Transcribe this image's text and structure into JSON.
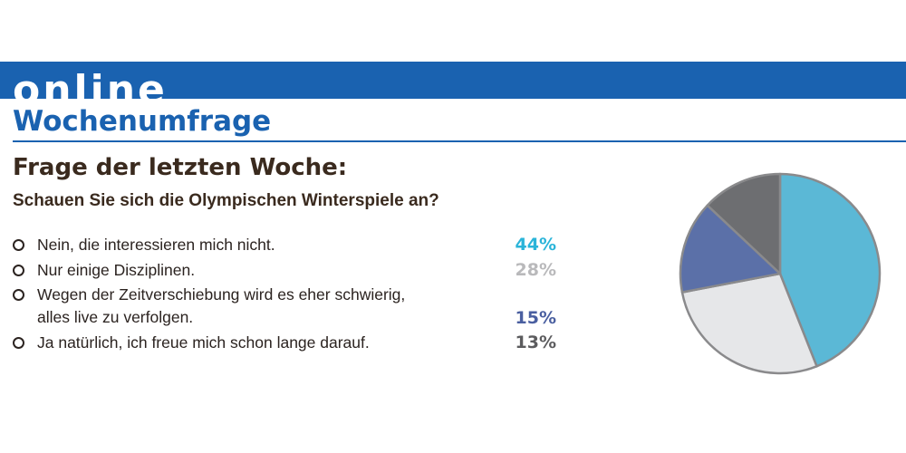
{
  "header": {
    "banner_word": "online",
    "subtitle": "Wochenumfrage"
  },
  "poll": {
    "heading": "Frage der letzten Woche:",
    "question": "Schauen Sie sich die Olympischen Winterspiele an?",
    "options": [
      {
        "lines": [
          "Nein, die interessieren mich nicht."
        ],
        "percent_label": "44%",
        "color": "#2ab4d9"
      },
      {
        "lines": [
          "Nur einige Disziplinen."
        ],
        "percent_label": "28%",
        "color": "#b9b9bb"
      },
      {
        "lines": [
          "Wegen der Zeitverschiebung wird es eher schwierig,",
          "alles live zu verfolgen."
        ],
        "percent_label": "15%",
        "color": "#4a5fa0"
      },
      {
        "lines": [
          "Ja natürlich, ich freue mich schon lange darauf."
        ],
        "percent_label": "13%",
        "color": "#5c5c5e"
      }
    ]
  },
  "chart_data": {
    "type": "pie",
    "categories": [
      "Nein, die interessieren mich nicht.",
      "Nur einige Disziplinen.",
      "Wegen der Zeitverschiebung wird es eher schwierig, alles live zu verfolgen.",
      "Ja natürlich, ich freue mich schon lange darauf."
    ],
    "values": [
      44,
      28,
      15,
      13
    ],
    "colors": [
      "#5bb8d6",
      "#e6e7e9",
      "#5b70a8",
      "#6d6e71"
    ],
    "edge_color": "#8a8a8c"
  }
}
